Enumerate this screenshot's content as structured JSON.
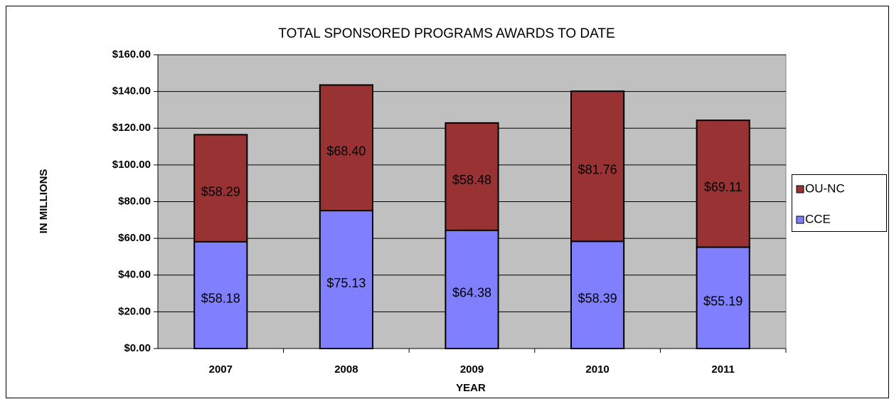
{
  "chart_data": {
    "type": "stacked_bar",
    "title": "TOTAL SPONSORED PROGRAMS AWARDS TO DATE",
    "x_label": "YEAR",
    "y_label": "IN MILLIONS",
    "categories": [
      "2007",
      "2008",
      "2009",
      "2010",
      "2011"
    ],
    "series": [
      {
        "name": "CCE",
        "color": "#8080ff",
        "values": [
          58.18,
          75.13,
          64.38,
          58.39,
          55.19
        ],
        "value_labels": [
          "$58.18",
          "$75.13",
          "$64.38",
          "$58.39",
          "$55.19"
        ]
      },
      {
        "name": "OU-NC",
        "color": "#993333",
        "values": [
          58.29,
          68.4,
          58.48,
          81.76,
          69.11
        ],
        "value_labels": [
          "$58.29",
          "$68.40",
          "$58.48",
          "$81.76",
          "$69.11"
        ]
      }
    ],
    "ylim": [
      0,
      160
    ],
    "yticks": [
      {
        "value": 0,
        "label": "$0.00"
      },
      {
        "value": 20,
        "label": "$20.00"
      },
      {
        "value": 40,
        "label": "$40.00"
      },
      {
        "value": 60,
        "label": "$60.00"
      },
      {
        "value": 80,
        "label": "$80.00"
      },
      {
        "value": 100,
        "label": "$100.00"
      },
      {
        "value": 120,
        "label": "$120.00"
      },
      {
        "value": 140,
        "label": "$140.00"
      },
      {
        "value": 160,
        "label": "$160.00"
      }
    ],
    "grid": true,
    "legend": "right"
  }
}
